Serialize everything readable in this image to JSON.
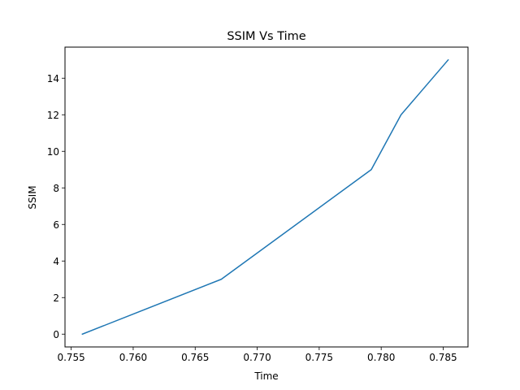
{
  "chart_data": {
    "type": "line",
    "title": "SSIM Vs Time",
    "xlabel": "Time",
    "ylabel": "SSIM",
    "xlim": [
      0.7545,
      0.787
    ],
    "ylim": [
      -0.7,
      15.7
    ],
    "xticks": [
      0.755,
      0.76,
      0.765,
      0.77,
      0.775,
      0.78,
      0.785
    ],
    "xtick_labels": [
      "0.755",
      "0.760",
      "0.765",
      "0.770",
      "0.775",
      "0.780",
      "0.785"
    ],
    "yticks": [
      0,
      2,
      4,
      6,
      8,
      10,
      12,
      14
    ],
    "ytick_labels": [
      "0",
      "2",
      "4",
      "6",
      "8",
      "10",
      "12",
      "14"
    ],
    "grid": false,
    "series": [
      {
        "color": "#1f77b4",
        "x": [
          0.7559,
          0.7671,
          0.7792,
          0.7816,
          0.7854
        ],
        "y": [
          0,
          3,
          9,
          12,
          15
        ]
      }
    ]
  }
}
